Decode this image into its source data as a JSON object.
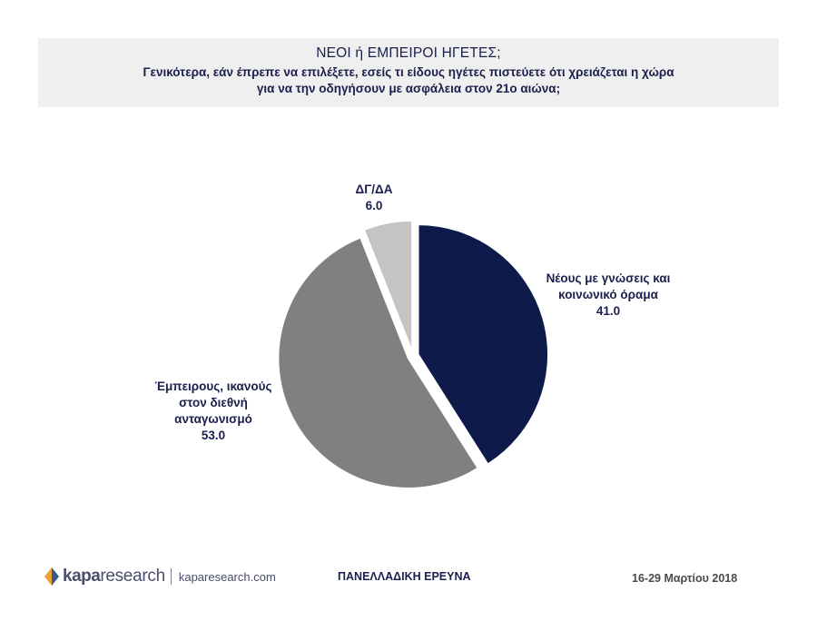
{
  "header": {
    "title": "ΝΕΟΙ  ή ΕΜΠΕΙΡΟΙ ΗΓΕΤΕΣ;",
    "subtitle_line1": "Γενικότερα, εάν έπρεπε να επιλέξετε, εσείς τι είδους ηγέτες πιστεύετε ότι χρειάζεται η χώρα",
    "subtitle_line2": "για να την οδηγήσουν με ασφάλεια στον 21ο αιώνα;"
  },
  "chart_data": {
    "type": "pie",
    "slices": [
      {
        "label_lines": [
          "Νέους με γνώσεις και",
          "κοινωνικό όραμα"
        ],
        "value": 41.0,
        "value_text": "41.0",
        "color": "#0d1a4a"
      },
      {
        "label_lines": [
          "Έμπειρους, ικανούς",
          "στον διεθνή",
          "ανταγωνισμό"
        ],
        "value": 53.0,
        "value_text": "53.0",
        "color": "#808080"
      },
      {
        "label_lines": [
          "ΔΓ/ΔΑ"
        ],
        "value": 6.0,
        "value_text": "6.0",
        "color": "#c4c4c4"
      }
    ],
    "start_angle_deg": 0,
    "direction": "clockwise",
    "exploded": true
  },
  "footer": {
    "logo_brand": "kapa",
    "logo_word": "research",
    "website": "kaparesearch.com",
    "survey": "ΠΑΝΕΛΛΑΔΙΚΗ ΕΡΕΥΝΑ",
    "date": "16-29 Μαρτίου 2018"
  },
  "colors": {
    "header_bg": "#efefef",
    "text_navy": "#1a1f4d",
    "logo_orange": "#f0a030",
    "logo_blue": "#3a5a8c"
  }
}
